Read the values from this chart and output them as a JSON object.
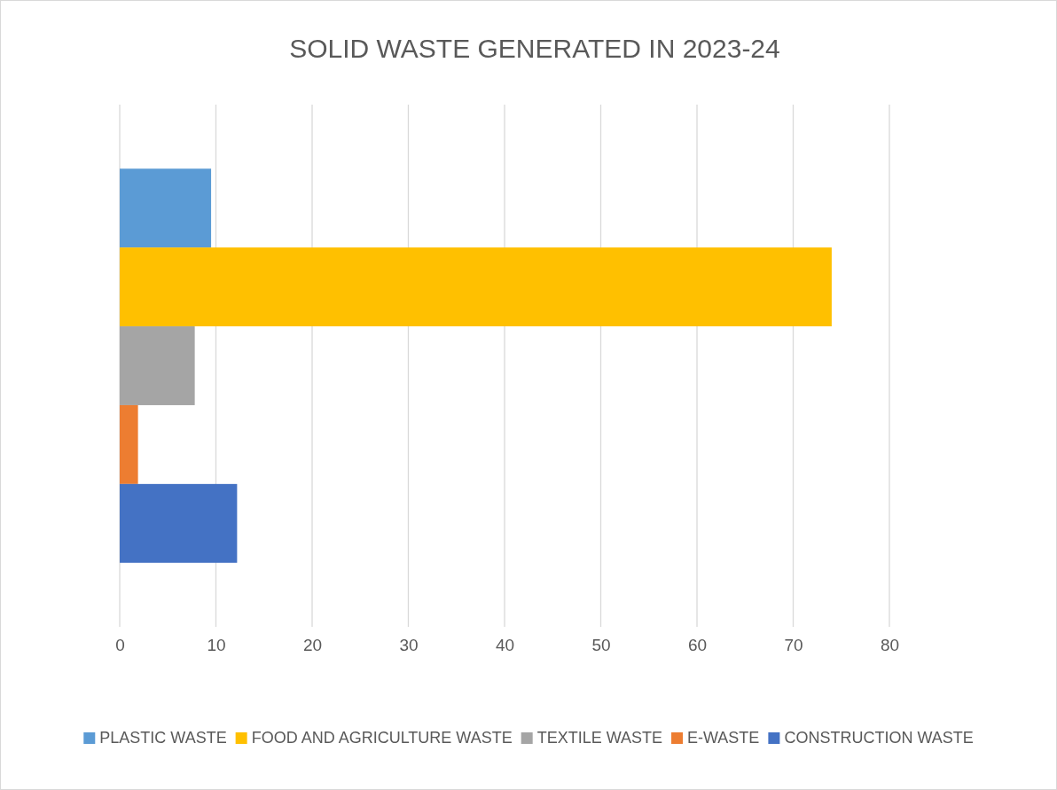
{
  "chart_data": {
    "type": "bar",
    "orientation": "horizontal",
    "title": "SOLID WASTE GENERATED IN 2023-24",
    "categories": [
      null
    ],
    "series": [
      {
        "name": "PLASTIC WASTE",
        "color": "#5b9bd5",
        "values": [
          9.5
        ]
      },
      {
        "name": "FOOD AND AGRICULTURE WASTE",
        "color": "#ffc000",
        "values": [
          74
        ]
      },
      {
        "name": "TEXTILE WASTE",
        "color": "#a5a5a5",
        "values": [
          7.8
        ]
      },
      {
        "name": "E-WASTE",
        "color": "#ed7d31",
        "values": [
          1.9
        ]
      },
      {
        "name": "CONSTRUCTION WASTE",
        "color": "#4472c4",
        "values": [
          12.2
        ]
      }
    ],
    "xlim": [
      0,
      80
    ],
    "xticks": [
      0,
      10,
      20,
      30,
      40,
      50,
      60,
      70,
      80
    ],
    "grid": "x",
    "legend": "bottom"
  }
}
